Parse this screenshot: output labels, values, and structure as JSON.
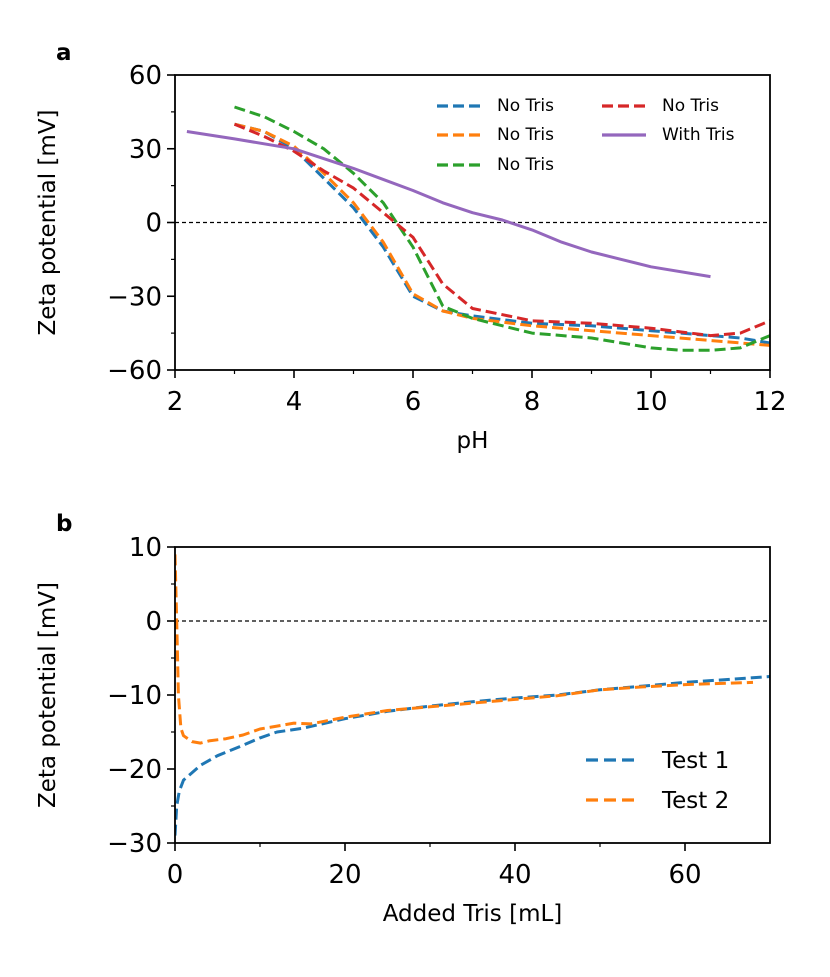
{
  "figure": {
    "panel_a_letter": "a",
    "panel_b_letter": "b"
  },
  "chart_data": [
    {
      "type": "line",
      "panel": "a",
      "title": "",
      "xlabel": "pH",
      "ylabel": "Zeta potential [mV]",
      "xlim": [
        2,
        12
      ],
      "ylim": [
        -60,
        60
      ],
      "xticks": [
        2,
        4,
        6,
        8,
        10,
        12
      ],
      "xtick_labels": [
        "2",
        "4",
        "6",
        "8",
        "10",
        "12"
      ],
      "yticks": [
        60,
        30,
        0,
        -30,
        -60
      ],
      "ytick_labels": [
        "60",
        "30",
        "0",
        "−30",
        "−60"
      ],
      "reference_line": 0,
      "legend_position": "upper-right",
      "series": [
        {
          "name": "No Tris",
          "color": "#1f77b4",
          "dashed": true,
          "x": [
            3.0,
            3.5,
            4.0,
            4.5,
            5.0,
            5.5,
            6.0,
            6.5,
            7.0,
            8.0,
            9.0,
            10.0,
            11.0,
            11.5,
            12.0
          ],
          "y": [
            40,
            37,
            30,
            18,
            6,
            -10,
            -30,
            -36,
            -38,
            -41,
            -42,
            -44,
            -46,
            -47,
            -49
          ]
        },
        {
          "name": "No Tris",
          "color": "#ff7f0e",
          "dashed": true,
          "x": [
            3.0,
            3.5,
            4.0,
            4.5,
            5.0,
            5.5,
            6.0,
            6.5,
            7.0,
            8.0,
            9.0,
            10.0,
            11.0,
            12.0
          ],
          "y": [
            40,
            37,
            31,
            20,
            8,
            -8,
            -29,
            -36,
            -39,
            -42,
            -44,
            -46,
            -48,
            -50
          ]
        },
        {
          "name": "No Tris",
          "color": "#2ca02c",
          "dashed": true,
          "x": [
            3.0,
            3.5,
            4.0,
            4.5,
            5.0,
            5.5,
            6.0,
            6.5,
            7.0,
            8.0,
            9.0,
            10.0,
            10.5,
            11.0,
            11.5,
            12.0
          ],
          "y": [
            47,
            43,
            37,
            30,
            20,
            8,
            -10,
            -34,
            -39,
            -45,
            -47,
            -51,
            -52,
            -52,
            -51,
            -46
          ]
        },
        {
          "name": "No Tris",
          "color": "#d62728",
          "dashed": true,
          "x": [
            3.0,
            3.5,
            4.0,
            4.5,
            5.0,
            5.5,
            6.0,
            6.5,
            7.0,
            8.0,
            9.0,
            10.0,
            11.0,
            11.5,
            12.0
          ],
          "y": [
            40,
            35,
            29,
            21,
            14,
            4,
            -6,
            -25,
            -35,
            -40,
            -41,
            -43,
            -46,
            -45,
            -40
          ]
        },
        {
          "name": "With Tris",
          "color": "#9467bd",
          "dashed": false,
          "x": [
            2.2,
            3.0,
            4.0,
            5.0,
            6.0,
            6.5,
            7.0,
            7.5,
            8.0,
            8.5,
            9.0,
            9.5,
            10.0,
            11.0
          ],
          "y": [
            37,
            34,
            30,
            22,
            13,
            8,
            4,
            1,
            -3,
            -8,
            -12,
            -15,
            -18,
            -22
          ]
        }
      ]
    },
    {
      "type": "line",
      "panel": "b",
      "title": "",
      "xlabel": "Added Tris [mL]",
      "ylabel": "Zeta potential [mV]",
      "xlim": [
        0,
        70
      ],
      "ylim": [
        -30,
        10
      ],
      "xticks": [
        0,
        20,
        40,
        60
      ],
      "xtick_labels": [
        "0",
        "20",
        "40",
        "60"
      ],
      "yticks": [
        10,
        0,
        -10,
        -20,
        -30
      ],
      "ytick_labels": [
        "10",
        "0",
        "−10",
        "−20",
        "−30"
      ],
      "reference_line": 0,
      "legend_position": "lower-right",
      "series": [
        {
          "name": "Test 1",
          "color": "#1f77b4",
          "dashed": true,
          "x": [
            0,
            0.2,
            0.5,
            1,
            2,
            3,
            5,
            8,
            10,
            12,
            15,
            20,
            25,
            30,
            35,
            40,
            45,
            50,
            55,
            60,
            65,
            70
          ],
          "y": [
            -29,
            -25,
            -23,
            -21.5,
            -20.5,
            -19.5,
            -18.2,
            -16.8,
            -15.8,
            -15,
            -14.5,
            -13.2,
            -12.2,
            -11.5,
            -10.9,
            -10.4,
            -10,
            -9.3,
            -8.8,
            -8.3,
            -7.9,
            -7.5
          ]
        },
        {
          "name": "Test 2",
          "color": "#ff7f0e",
          "dashed": true,
          "x": [
            0,
            0.2,
            0.4,
            0.7,
            1,
            2,
            3,
            4,
            6,
            8,
            10,
            12,
            14,
            16,
            20,
            25,
            30,
            35,
            40,
            45,
            50,
            55,
            60,
            65,
            68
          ],
          "y": [
            9,
            0,
            -10,
            -14.5,
            -15.5,
            -16.3,
            -16.5,
            -16.2,
            -15.9,
            -15.4,
            -14.6,
            -14.2,
            -13.8,
            -13.9,
            -13,
            -12.1,
            -11.6,
            -11.1,
            -10.6,
            -10.1,
            -9.3,
            -8.9,
            -8.6,
            -8.4,
            -8.3
          ]
        }
      ]
    }
  ]
}
